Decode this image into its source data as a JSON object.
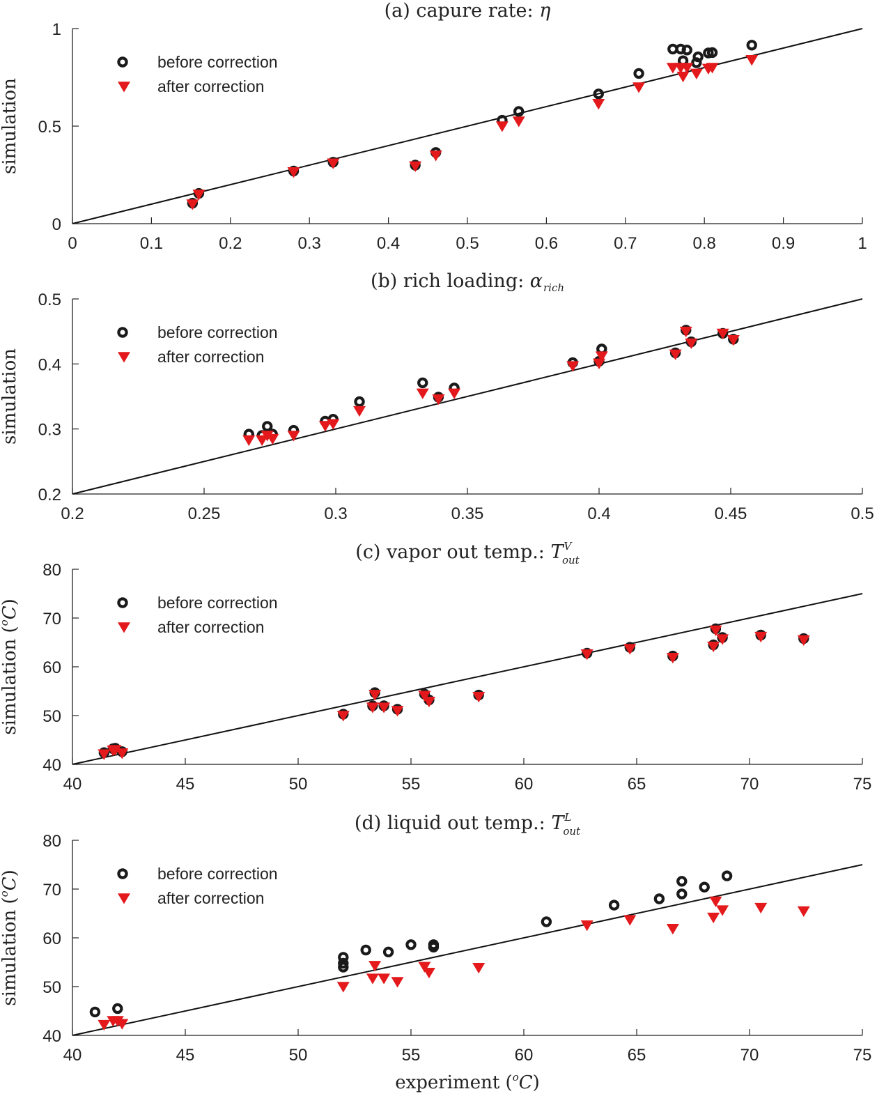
{
  "chart_data": [
    {
      "type": "scatter",
      "title": "(a) capure rate: η",
      "title_parts": {
        "prefix": "(a) capure rate: ",
        "symbol": "η",
        "sub": "",
        "sup": ""
      },
      "xlabel": "",
      "ylabel": "simulation",
      "xlim": [
        0,
        1
      ],
      "ylim": [
        0,
        1
      ],
      "xticks": [
        0,
        0.1,
        0.2,
        0.3,
        0.4,
        0.5,
        0.6,
        0.7,
        0.8,
        0.9,
        1
      ],
      "xtick_labels": [
        "0",
        "0.1",
        "0.2",
        "0.3",
        "0.4",
        "0.5",
        "0.6",
        "0.7",
        "0.8",
        "0.9",
        "1"
      ],
      "yticks": [
        0,
        0.5,
        1
      ],
      "ytick_labels": [
        "0",
        "0.5",
        "1"
      ],
      "legend": {
        "position": "top-left",
        "entries": [
          "before correction",
          "after correction"
        ]
      },
      "reference_line": "y = x",
      "series": [
        {
          "name": "before correction",
          "marker": "ring",
          "color": "#1a1a1a",
          "points": [
            [
              0.152,
              0.105
            ],
            [
              0.16,
              0.155
            ],
            [
              0.28,
              0.27
            ],
            [
              0.33,
              0.315
            ],
            [
              0.434,
              0.3
            ],
            [
              0.46,
              0.365
            ],
            [
              0.544,
              0.53
            ],
            [
              0.565,
              0.575
            ],
            [
              0.666,
              0.665
            ],
            [
              0.717,
              0.77
            ],
            [
              0.76,
              0.895
            ],
            [
              0.77,
              0.895
            ],
            [
              0.773,
              0.835
            ],
            [
              0.778,
              0.89
            ],
            [
              0.79,
              0.825
            ],
            [
              0.792,
              0.855
            ],
            [
              0.805,
              0.875
            ],
            [
              0.81,
              0.877
            ],
            [
              0.86,
              0.915
            ]
          ]
        },
        {
          "name": "after correction",
          "marker": "triangle-down",
          "color": "#e3191c",
          "points": [
            [
              0.152,
              0.1
            ],
            [
              0.16,
              0.15
            ],
            [
              0.28,
              0.265
            ],
            [
              0.33,
              0.31
            ],
            [
              0.434,
              0.295
            ],
            [
              0.46,
              0.35
            ],
            [
              0.544,
              0.5
            ],
            [
              0.565,
              0.525
            ],
            [
              0.666,
              0.615
            ],
            [
              0.717,
              0.7
            ],
            [
              0.76,
              0.8
            ],
            [
              0.77,
              0.8
            ],
            [
              0.773,
              0.755
            ],
            [
              0.778,
              0.8
            ],
            [
              0.79,
              0.77
            ],
            [
              0.805,
              0.795
            ],
            [
              0.81,
              0.8
            ],
            [
              0.86,
              0.84
            ]
          ]
        }
      ]
    },
    {
      "type": "scatter",
      "title": "(b) rich loading: α_rich",
      "title_parts": {
        "prefix": "(b) rich loading: ",
        "symbol": "α",
        "sub": "rich",
        "sup": ""
      },
      "xlabel": "",
      "ylabel": "simulation",
      "xlim": [
        0.2,
        0.5
      ],
      "ylim": [
        0.2,
        0.5
      ],
      "xticks": [
        0.2,
        0.25,
        0.3,
        0.35,
        0.4,
        0.45,
        0.5
      ],
      "xtick_labels": [
        "0.2",
        "0.25",
        "0.3",
        "0.35",
        "0.4",
        "0.45",
        "0.5"
      ],
      "yticks": [
        0.2,
        0.3,
        0.4,
        0.5
      ],
      "ytick_labels": [
        "0.2",
        "0.3",
        "0.4",
        "0.5"
      ],
      "legend": {
        "position": "top-left",
        "entries": [
          "before correction",
          "after correction"
        ]
      },
      "reference_line": "y = x",
      "series": [
        {
          "name": "before correction",
          "marker": "ring",
          "color": "#1a1a1a",
          "points": [
            [
              0.267,
              0.292
            ],
            [
              0.272,
              0.29
            ],
            [
              0.274,
              0.304
            ],
            [
              0.276,
              0.292
            ],
            [
              0.284,
              0.298
            ],
            [
              0.296,
              0.312
            ],
            [
              0.299,
              0.315
            ],
            [
              0.309,
              0.342
            ],
            [
              0.333,
              0.371
            ],
            [
              0.339,
              0.349
            ],
            [
              0.345,
              0.363
            ],
            [
              0.39,
              0.402
            ],
            [
              0.4,
              0.404
            ],
            [
              0.401,
              0.423
            ],
            [
              0.429,
              0.417
            ],
            [
              0.433,
              0.452
            ],
            [
              0.435,
              0.434
            ],
            [
              0.447,
              0.447
            ],
            [
              0.451,
              0.438
            ]
          ]
        },
        {
          "name": "after correction",
          "marker": "triangle-down",
          "color": "#e3191c",
          "points": [
            [
              0.267,
              0.283
            ],
            [
              0.272,
              0.283
            ],
            [
              0.274,
              0.29
            ],
            [
              0.276,
              0.285
            ],
            [
              0.284,
              0.29
            ],
            [
              0.296,
              0.305
            ],
            [
              0.299,
              0.308
            ],
            [
              0.309,
              0.328
            ],
            [
              0.333,
              0.355
            ],
            [
              0.339,
              0.346
            ],
            [
              0.345,
              0.355
            ],
            [
              0.39,
              0.397
            ],
            [
              0.4,
              0.401
            ],
            [
              0.401,
              0.412
            ],
            [
              0.429,
              0.415
            ],
            [
              0.433,
              0.45
            ],
            [
              0.435,
              0.432
            ],
            [
              0.447,
              0.447
            ],
            [
              0.451,
              0.437
            ]
          ]
        }
      ]
    },
    {
      "type": "scatter",
      "title": "(c) vapor out temp.: T_out^V",
      "title_parts": {
        "prefix": "(c) vapor out temp.: ",
        "symbol": "T",
        "sub": "out",
        "sup": "V"
      },
      "xlabel": "",
      "ylabel": "simulation (°C)",
      "ylabel_parts": {
        "prefix": "simulation (",
        "sup": "o",
        "unit": "C",
        "suffix": ")"
      },
      "xlim": [
        40,
        75
      ],
      "ylim": [
        40,
        80
      ],
      "xticks": [
        40,
        45,
        50,
        55,
        60,
        65,
        70,
        75
      ],
      "xtick_labels": [
        "40",
        "45",
        "50",
        "55",
        "60",
        "65",
        "70",
        "75"
      ],
      "yticks": [
        40,
        50,
        60,
        70,
        80
      ],
      "ytick_labels": [
        "40",
        "50",
        "60",
        "70",
        "80"
      ],
      "legend": {
        "position": "top-left",
        "entries": [
          "before correction",
          "after correction"
        ]
      },
      "reference_line": "y = x",
      "series": [
        {
          "name": "before correction",
          "marker": "ring",
          "color": "#1a1a1a",
          "points": [
            [
              41.4,
              42.4
            ],
            [
              41.8,
              43.2
            ],
            [
              41.9,
              43.3
            ],
            [
              42.2,
              42.6
            ],
            [
              52,
              50.3
            ],
            [
              53.3,
              52
            ],
            [
              53.4,
              54.7
            ],
            [
              53.8,
              52
            ],
            [
              54.4,
              51.3
            ],
            [
              55.6,
              54.4
            ],
            [
              55.8,
              53.2
            ],
            [
              58,
              54.2
            ],
            [
              62.8,
              62.8
            ],
            [
              64.7,
              64
            ],
            [
              66.6,
              62.2
            ],
            [
              68.4,
              64.5
            ],
            [
              68.5,
              67.8
            ],
            [
              68.8,
              66
            ],
            [
              70.5,
              66.5
            ],
            [
              72.4,
              65.8
            ]
          ]
        },
        {
          "name": "after correction",
          "marker": "triangle-down",
          "color": "#e3191c",
          "points": [
            [
              41.4,
              42.1
            ],
            [
              41.8,
              42.9
            ],
            [
              41.9,
              43
            ],
            [
              42.2,
              42.3
            ],
            [
              52,
              50
            ],
            [
              53.3,
              51.7
            ],
            [
              53.4,
              54.3
            ],
            [
              53.8,
              51.7
            ],
            [
              54.4,
              51
            ],
            [
              55.6,
              54.1
            ],
            [
              55.8,
              52.9
            ],
            [
              58,
              53.9
            ],
            [
              62.8,
              62.6
            ],
            [
              64.7,
              63.7
            ],
            [
              66.6,
              61.9
            ],
            [
              68.4,
              64.2
            ],
            [
              68.5,
              67.5
            ],
            [
              68.8,
              65.7
            ],
            [
              70.5,
              66.2
            ],
            [
              72.4,
              65.5
            ]
          ]
        }
      ]
    },
    {
      "type": "scatter",
      "title": "(d) liquid out temp.: T_out^L",
      "title_parts": {
        "prefix": "(d) liquid out temp.: ",
        "symbol": "T",
        "sub": "out",
        "sup": "L"
      },
      "xlabel": "experiment (°C)",
      "xlabel_parts": {
        "prefix": "experiment (",
        "sup": "o",
        "unit": "C",
        "suffix": ")"
      },
      "ylabel": "simulation (°C)",
      "ylabel_parts": {
        "prefix": "simulation (",
        "sup": "o",
        "unit": "C",
        "suffix": ")"
      },
      "xlim": [
        40,
        75
      ],
      "ylim": [
        40,
        80
      ],
      "xticks": [
        40,
        45,
        50,
        55,
        60,
        65,
        70,
        75
      ],
      "xtick_labels": [
        "40",
        "45",
        "50",
        "55",
        "60",
        "65",
        "70",
        "75"
      ],
      "yticks": [
        40,
        50,
        60,
        70,
        80
      ],
      "ytick_labels": [
        "40",
        "50",
        "60",
        "70",
        "80"
      ],
      "legend": {
        "position": "top-left",
        "entries": [
          "before correction",
          "after correction"
        ]
      },
      "reference_line": "y = x",
      "series": [
        {
          "name": "before correction",
          "marker": "ring",
          "color": "#1a1a1a",
          "points": [
            [
              41,
              44.8
            ],
            [
              42,
              45.5
            ],
            [
              52,
              54
            ],
            [
              52,
              54.8
            ],
            [
              52,
              56
            ],
            [
              53,
              57.5
            ],
            [
              54,
              57.1
            ],
            [
              55,
              58.6
            ],
            [
              56,
              58.1
            ],
            [
              56,
              58.6
            ],
            [
              61,
              63.3
            ],
            [
              64,
              66.7
            ],
            [
              66,
              68
            ],
            [
              67,
              69
            ],
            [
              67,
              71.6
            ],
            [
              68,
              70.4
            ],
            [
              69,
              72.7
            ]
          ]
        },
        {
          "name": "after correction",
          "marker": "triangle-down",
          "color": "#e3191c",
          "points": [
            [
              41.4,
              42.2
            ],
            [
              41.8,
              43
            ],
            [
              42,
              43
            ],
            [
              42.2,
              42.4
            ],
            [
              52,
              50
            ],
            [
              53.3,
              51.7
            ],
            [
              53.4,
              54.3
            ],
            [
              53.8,
              51.7
            ],
            [
              54.4,
              51
            ],
            [
              55.6,
              54.1
            ],
            [
              55.8,
              52.9
            ],
            [
              58,
              53.9
            ],
            [
              62.8,
              62.6
            ],
            [
              64.7,
              63.7
            ],
            [
              66.6,
              61.9
            ],
            [
              68.4,
              64.2
            ],
            [
              68.5,
              67.5
            ],
            [
              68.8,
              65.7
            ],
            [
              70.5,
              66.2
            ],
            [
              72.4,
              65.5
            ]
          ]
        }
      ]
    }
  ]
}
